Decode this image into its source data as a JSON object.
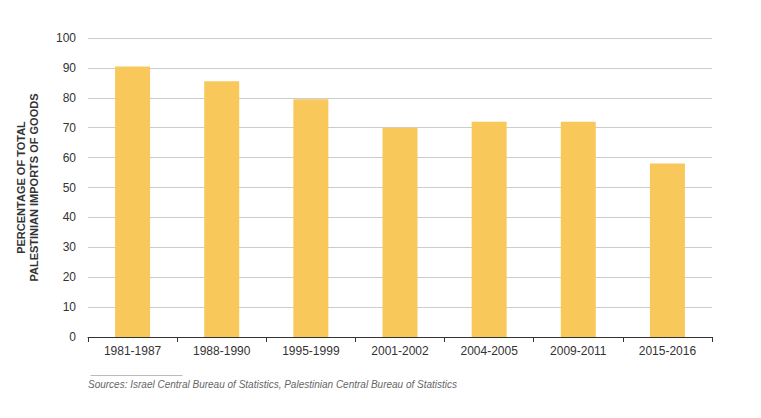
{
  "chart_data": {
    "type": "bar",
    "ylabel": "PERCENTAGE OF TOTAL\nPALESTINIAN IMPORTS OF GOODS",
    "categories": [
      "1981-1987",
      "1988-1990",
      "1995-1999",
      "2001-2002",
      "2004-2005",
      "2009-2011",
      "2015-2016"
    ],
    "values": [
      90.5,
      85.5,
      79.5,
      70,
      72,
      72,
      58
    ],
    "color": "#f9c85b",
    "ylim": [
      0,
      100
    ],
    "yticks": [
      0,
      10,
      20,
      30,
      40,
      50,
      60,
      70,
      80,
      90,
      100
    ],
    "grid": true,
    "annotations": [
      "Sources: Israel Central Bureau of Statistics, Palestinian Central Bureau of Statistics"
    ]
  }
}
